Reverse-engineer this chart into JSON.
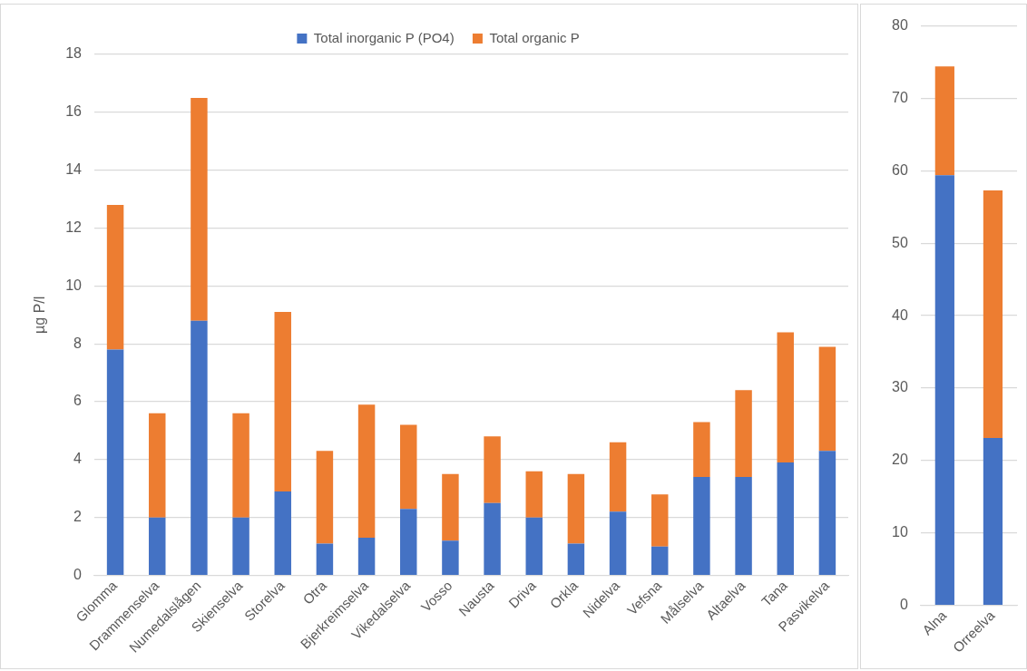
{
  "chart_data": [
    {
      "type": "bar",
      "stacked": true,
      "ylabel": "µg P/l",
      "legend": "top",
      "grid": "y",
      "categories": [
        "Glomma",
        "Drammenselva",
        "Numedalslågen",
        "Skienselva",
        "Storelva",
        "Otra",
        "Bjerkreimselva",
        "Vikedalselva",
        "Vosso",
        "Nausta",
        "Driva",
        "Orkla",
        "Nidelva",
        "Vefsna",
        "Målselva",
        "Altaelva",
        "Tana",
        "Pasvikelva"
      ],
      "ylim": [
        0,
        18
      ],
      "yticks": [
        0,
        2,
        4,
        6,
        8,
        10,
        12,
        14,
        16,
        18
      ],
      "series": [
        {
          "name": "Total inorganic P (PO4)",
          "color": "#4472c4",
          "values": [
            7.8,
            2.0,
            8.8,
            2.0,
            2.9,
            1.1,
            1.3,
            2.3,
            1.2,
            2.5,
            2.0,
            1.1,
            2.2,
            1.0,
            3.4,
            3.4,
            3.9,
            4.3
          ]
        },
        {
          "name": "Total organic P",
          "color": "#ed7d31",
          "values": [
            5.0,
            3.6,
            7.7,
            3.6,
            6.2,
            3.2,
            4.6,
            2.9,
            2.3,
            2.3,
            1.6,
            2.4,
            2.4,
            1.8,
            1.9,
            3.0,
            4.5,
            3.6
          ]
        }
      ]
    },
    {
      "type": "bar",
      "stacked": true,
      "grid": "y",
      "categories": [
        "Alna",
        "Orreelva"
      ],
      "ylim": [
        0,
        80
      ],
      "yticks": [
        0,
        10,
        20,
        30,
        40,
        50,
        60,
        70,
        80
      ],
      "series": [
        {
          "color": "#4472c4",
          "values": [
            59.4,
            23.1
          ]
        },
        {
          "color": "#ed7d31",
          "values": [
            15.0,
            34.2
          ]
        }
      ]
    }
  ]
}
